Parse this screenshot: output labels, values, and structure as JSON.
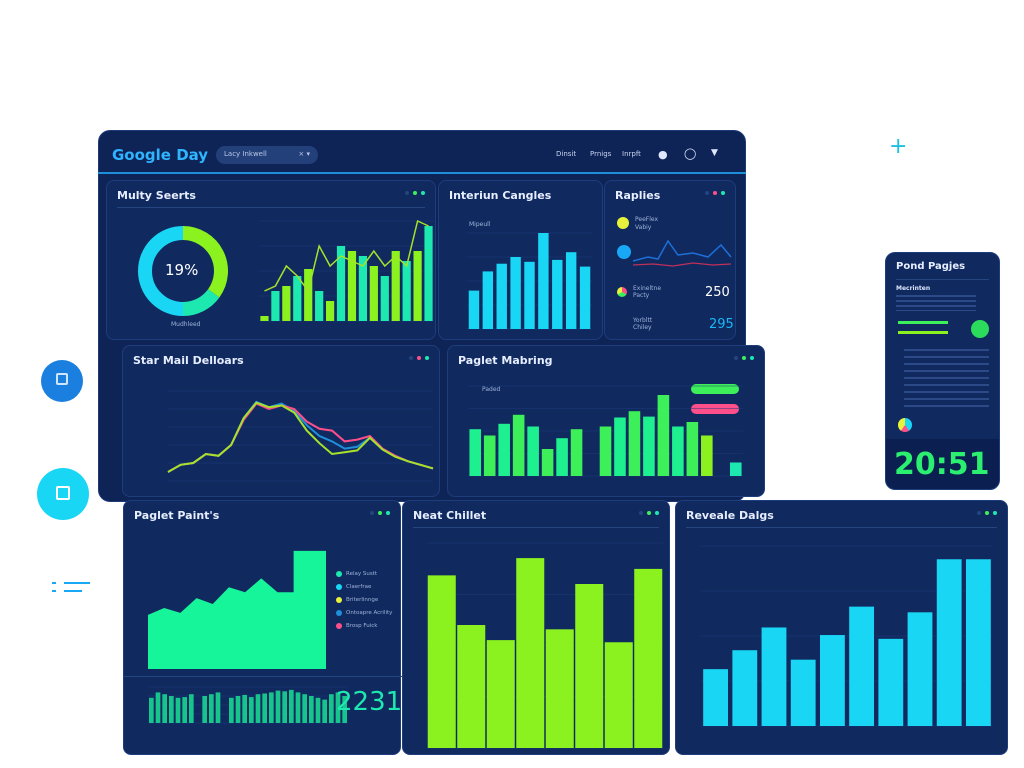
{
  "header": {
    "brand": "Google Day",
    "filter_pill": "Lacy Inkwell",
    "filter_pill_suffix": "× ▾",
    "nav": [
      "Dinsit",
      "Prnigs",
      "Inrpft"
    ],
    "icons": [
      "user-icon",
      "shield-icon",
      "chevron-down-icon"
    ]
  },
  "colors": {
    "bg": "#0e2457",
    "green": "#3df05a",
    "lime": "#8cf21f",
    "cyan": "#19d6f5",
    "teal": "#1de8b0",
    "pink": "#ff4f8a",
    "yellow": "#e8f23a",
    "blue": "#1e8fd8"
  },
  "panels": {
    "multi": {
      "title": "Multy Seerts",
      "donut_label": "19%",
      "donut_caption": "Mudhleed"
    },
    "interior": {
      "title": "Interiun Cangles",
      "inner_label": "Mipeull"
    },
    "replies": {
      "title": "Raplies",
      "items": [
        {
          "label": "PeeFlex",
          "sub": "Vabiy"
        },
        {
          "label": "Exineltne",
          "sub": "Pacty",
          "value": "250"
        },
        {
          "label": "Yorbltt",
          "sub": "Chiley",
          "value": "295"
        }
      ]
    },
    "starmail": {
      "title": "Star Mail Delloars"
    },
    "paged": {
      "title": "Paglet Mabring",
      "inner_label": "Paded"
    },
    "paints": {
      "title": "Paglet Paint's",
      "legend": [
        "Relay Sustt",
        "Claerfrae",
        "Briterlinnge",
        "Ontoapre Acrility",
        "Brosp Fuick"
      ],
      "big_number": "2231"
    },
    "neat": {
      "title": "Neat Chillet"
    },
    "reveal": {
      "title": "Reveale Dalgs"
    },
    "phone": {
      "title": "Pond Pagjes",
      "section": "Mecrinten",
      "time": "20:51"
    }
  },
  "chart_data": [
    {
      "type": "pie",
      "name": "donut",
      "values": [
        35,
        15,
        50
      ],
      "label": "19%"
    },
    {
      "type": "bar",
      "name": "multi-bars",
      "values": [
        5,
        30,
        35,
        45,
        52,
        30,
        20,
        75,
        70,
        65,
        55,
        45,
        70,
        60,
        70,
        95
      ],
      "line": [
        30,
        35,
        55,
        45,
        30,
        75,
        55,
        65,
        60,
        55,
        70,
        55,
        65,
        55,
        100,
        95
      ]
    },
    {
      "type": "bar",
      "name": "interior-bars",
      "values": [
        40,
        60,
        68,
        75,
        70,
        100,
        72,
        80,
        65
      ]
    },
    {
      "type": "line",
      "name": "starmail",
      "series": [
        {
          "values": [
            10,
            18,
            20,
            30,
            28,
            40,
            70,
            88,
            82,
            86,
            78,
            62,
            50,
            44,
            36,
            38,
            48,
            35,
            28,
            22,
            18,
            14
          ]
        },
        {
          "values": [
            10,
            18,
            20,
            30,
            28,
            40,
            68,
            86,
            80,
            84,
            80,
            66,
            58,
            56,
            44,
            46,
            50,
            36,
            28,
            22,
            18,
            14
          ]
        },
        {
          "values": [
            10,
            18,
            20,
            30,
            28,
            40,
            70,
            87,
            82,
            84,
            76,
            56,
            42,
            30,
            32,
            34,
            48,
            35,
            27,
            22,
            18,
            14
          ]
        }
      ]
    },
    {
      "type": "bar",
      "name": "paged-bars",
      "values": [
        52,
        45,
        58,
        68,
        55,
        30,
        42,
        52,
        0,
        55,
        65,
        72,
        66,
        90,
        55,
        60,
        45,
        0,
        15
      ]
    },
    {
      "type": "area",
      "name": "paints-area",
      "values": [
        55,
        62,
        57,
        72,
        66,
        83,
        78,
        92,
        78,
        78,
        120,
        120
      ]
    },
    {
      "type": "bar",
      "name": "paints-mini",
      "values": [
        70,
        85,
        80,
        75,
        70,
        72,
        80,
        0,
        75,
        80,
        85,
        0,
        70,
        75,
        78,
        72,
        80,
        82,
        85,
        90,
        88,
        92,
        85,
        80,
        75,
        70,
        65,
        80,
        85,
        75
      ]
    },
    {
      "type": "bar",
      "name": "neat-bars",
      "values": [
        80,
        57,
        50,
        88,
        55,
        76,
        49,
        83
      ]
    },
    {
      "type": "bar",
      "name": "reveal-bars",
      "values": [
        30,
        40,
        52,
        35,
        48,
        63,
        46,
        60,
        88,
        88
      ]
    }
  ]
}
